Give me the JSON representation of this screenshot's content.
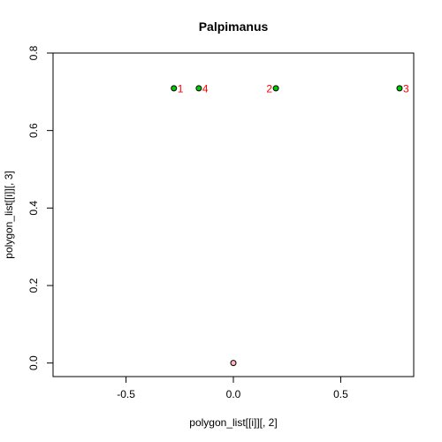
{
  "chart_data": {
    "type": "scatter",
    "title": "Palpimanus",
    "xlabel": "polygon_list[[i]][, 2]",
    "ylabel": "polygon_list[[i]][, 3]",
    "xlim": [
      -0.84,
      0.84
    ],
    "ylim": [
      -0.035,
      0.8
    ],
    "xticks": [
      -0.5,
      0.0,
      0.5
    ],
    "xtick_labels": [
      "-0.5",
      "0.0",
      "0.5"
    ],
    "yticks": [
      0.0,
      0.2,
      0.4,
      0.6,
      0.8
    ],
    "ytick_labels": [
      "0.0",
      "0.2",
      "0.4",
      "0.6",
      "0.8"
    ],
    "grid": false,
    "series": [
      {
        "color": "#00cc00",
        "points": [
          {
            "x": -0.277,
            "y": 0.709,
            "label": "1",
            "label_side": "right"
          },
          {
            "x": 0.198,
            "y": 0.709,
            "label": "2",
            "label_side": "left"
          },
          {
            "x": 0.774,
            "y": 0.709,
            "label": "3",
            "label_side": "right"
          },
          {
            "x": -0.161,
            "y": 0.709,
            "label": "4",
            "label_side": "right"
          }
        ]
      },
      {
        "color": "#ffb6c1",
        "points": [
          {
            "x": 0.0,
            "y": 0.0,
            "label": "",
            "label_side": "none"
          }
        ]
      }
    ],
    "label_color": "#ff0000"
  }
}
